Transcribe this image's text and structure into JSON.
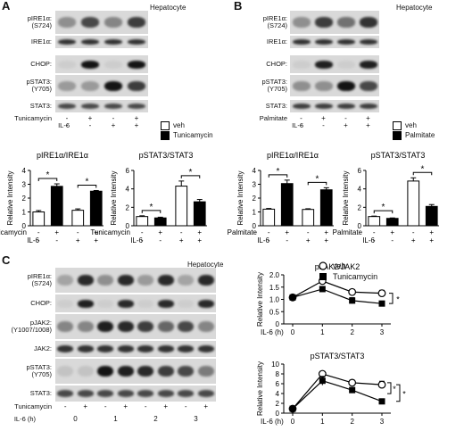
{
  "panels": {
    "A": {
      "letter": "A",
      "title": "Hepatocyte",
      "blot_labels": [
        "pIRE1α:\n(S724)",
        "IRE1α:",
        "CHOP:",
        "pSTAT3:\n(Y705)",
        "STAT3:"
      ],
      "treatment_label": "Tunicamycin",
      "il6_label": "IL-6",
      "treatment_signs": [
        "-",
        "+",
        "-",
        "+"
      ],
      "il6_signs": [
        "-",
        "-",
        "+",
        "+"
      ],
      "legend": [
        "veh",
        "Tunicamycin"
      ]
    },
    "B": {
      "letter": "B",
      "title": "Hepatocyte",
      "blot_labels": [
        "pIRE1α:\n(S724)",
        "IRE1α:",
        "CHOP:",
        "pSTAT3:\n(Y705)",
        "STAT3:"
      ],
      "treatment_label": "Palmitate",
      "il6_label": "IL-6",
      "treatment_signs": [
        "-",
        "+",
        "-",
        "+"
      ],
      "il6_signs": [
        "-",
        "-",
        "+",
        "+"
      ],
      "legend": [
        "veh",
        "Palmitate"
      ]
    },
    "C": {
      "letter": "C",
      "title": "Hepatocyte",
      "blot_labels": [
        "pIRE1α:\n(S724)",
        "CHOP:",
        "pJAK2:\n(Y1007/1008)",
        "JAK2:",
        "pSTAT3:\n(Y705)",
        "STAT3:"
      ],
      "treatment_label": "Tunicamycin",
      "il6_label": "IL-6 (h)",
      "treatment_signs": [
        "-",
        "+",
        "-",
        "+",
        "-",
        "+",
        "-",
        "+"
      ],
      "il6_times": [
        "0",
        "1",
        "2",
        "3"
      ],
      "legend": [
        "veh",
        "Tunicamycin"
      ]
    }
  },
  "chart_data": [
    {
      "type": "bar",
      "panel": "A",
      "title": "pIRE1α/IRE1α",
      "ylabel": "Relative Intensity",
      "ylim": [
        0,
        4
      ],
      "yticks": [
        "0",
        "1",
        "2",
        "3",
        "4"
      ],
      "treatment_label": "Tunicamycin",
      "il6_label": "IL-6",
      "x_treat": [
        "-",
        "+",
        "-",
        "+"
      ],
      "x_il6": [
        "-",
        "-",
        "+",
        "+"
      ],
      "values": [
        1.0,
        2.85,
        1.12,
        2.5
      ],
      "errors": [
        0.1,
        0.18,
        0.1,
        0.05
      ],
      "fills": [
        "white",
        "black",
        "white",
        "black"
      ],
      "sig": [
        [
          0,
          1,
          "*"
        ],
        [
          2,
          3,
          "*"
        ]
      ]
    },
    {
      "type": "bar",
      "panel": "A",
      "title": "pSTAT3/STAT3",
      "ylabel": "Relative Intensity",
      "ylim": [
        0,
        6
      ],
      "yticks": [
        "0",
        "2",
        "4",
        "6"
      ],
      "treatment_label": "Tunicamycin",
      "il6_label": "IL-6",
      "x_treat": [
        "-",
        "+",
        "-",
        "+"
      ],
      "x_il6": [
        "-",
        "-",
        "+",
        "+"
      ],
      "values": [
        1.0,
        0.85,
        4.3,
        2.6
      ],
      "errors": [
        0.08,
        0.08,
        0.55,
        0.25
      ],
      "fills": [
        "white",
        "black",
        "white",
        "black"
      ],
      "sig": [
        [
          0,
          1,
          "*"
        ],
        [
          2,
          3,
          "*"
        ]
      ]
    },
    {
      "type": "bar",
      "panel": "B",
      "title": "pIRE1α/IRE1α",
      "ylabel": "Relative Intensity",
      "ylim": [
        0,
        4
      ],
      "yticks": [
        "0",
        "1",
        "2",
        "3",
        "4"
      ],
      "treatment_label": "Palmitate",
      "il6_label": "IL-6",
      "x_treat": [
        "-",
        "+",
        "-",
        "+"
      ],
      "x_il6": [
        "-",
        "-",
        "+",
        "+"
      ],
      "values": [
        1.2,
        3.05,
        1.18,
        2.6
      ],
      "errors": [
        0.05,
        0.25,
        0.05,
        0.15
      ],
      "fills": [
        "white",
        "black",
        "white",
        "black"
      ],
      "sig": [
        [
          0,
          1,
          "*"
        ],
        [
          2,
          3,
          "*"
        ]
      ]
    },
    {
      "type": "bar",
      "panel": "B",
      "title": "pSTAT3/STAT3",
      "ylabel": "Relative Intensity",
      "ylim": [
        0,
        6
      ],
      "yticks": [
        "0",
        "2",
        "4",
        "6"
      ],
      "treatment_label": "Palmitate",
      "il6_label": "IL-6",
      "x_treat": [
        "-",
        "+",
        "-",
        "+"
      ],
      "x_il6": [
        "-",
        "-",
        "+",
        "+"
      ],
      "values": [
        1.0,
        0.8,
        4.85,
        2.1
      ],
      "errors": [
        0.05,
        0.05,
        0.35,
        0.2
      ],
      "fills": [
        "white",
        "black",
        "white",
        "black"
      ],
      "sig": [
        [
          0,
          1,
          "*"
        ],
        [
          2,
          3,
          "*"
        ]
      ]
    },
    {
      "type": "line",
      "panel": "C",
      "title": "pJAK2/JAK2",
      "ylabel": "Relative Intensity",
      "xlabel": "IL-6 (h)",
      "x": [
        0,
        1,
        2,
        3
      ],
      "xticks": [
        "0",
        "1",
        "2",
        "3"
      ],
      "ylim": [
        0,
        2.0
      ],
      "yticks": [
        "0",
        "0.5",
        "1.0",
        "1.5",
        "2.0"
      ],
      "series": [
        {
          "name": "veh",
          "values": [
            1.08,
            1.75,
            1.3,
            1.25
          ],
          "errors": [
            0.06,
            0.1,
            0.1,
            0.12
          ],
          "marker": "open"
        },
        {
          "name": "Tunicamycin",
          "values": [
            1.08,
            1.42,
            0.95,
            0.83
          ],
          "errors": [
            0.06,
            0.08,
            0.12,
            0.05
          ],
          "marker": "filled"
        }
      ],
      "sig": "*"
    },
    {
      "type": "line",
      "panel": "C",
      "title": "pSTAT3/STAT3",
      "ylabel": "Relative Intensity",
      "xlabel": "IL-6 (h)",
      "x": [
        0,
        1,
        2,
        3
      ],
      "xticks": [
        "0",
        "1",
        "2",
        "3"
      ],
      "ylim": [
        0,
        10
      ],
      "yticks": [
        "0",
        "2",
        "4",
        "6",
        "8",
        "10"
      ],
      "series": [
        {
          "name": "veh",
          "values": [
            0.9,
            8.0,
            6.2,
            5.8
          ],
          "errors": [
            0.1,
            0.5,
            0.5,
            0.7
          ],
          "marker": "open"
        },
        {
          "name": "Tunicamycin",
          "values": [
            0.9,
            6.6,
            4.7,
            2.4
          ],
          "errors": [
            0.1,
            0.9,
            0.5,
            0.5
          ],
          "marker": "filled"
        }
      ],
      "sig": [
        "*",
        "*"
      ]
    }
  ]
}
